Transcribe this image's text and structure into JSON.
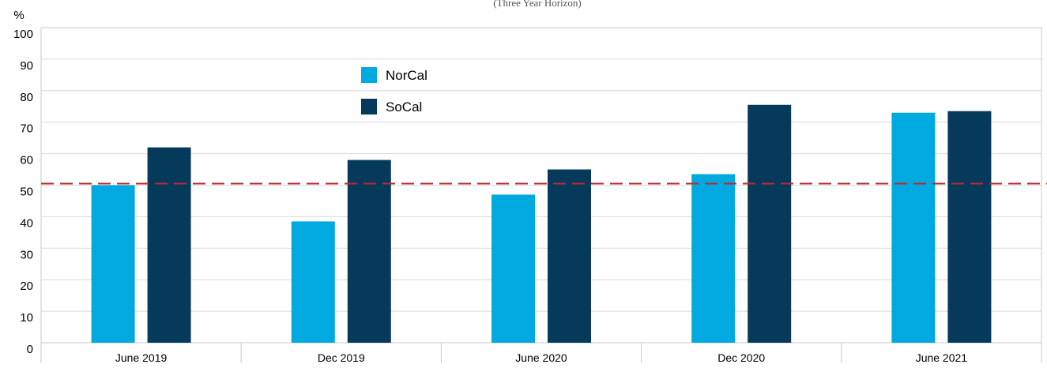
{
  "chart_data": {
    "type": "bar",
    "subtitle": "(Three Year Horizon)",
    "y_label": "%",
    "categories": [
      "June 2019",
      "Dec 2019",
      "June 2020",
      "Dec 2020",
      "June 2021"
    ],
    "series": [
      {
        "name": "NorCal",
        "color": "#00a9e0",
        "values": [
          50,
          38.5,
          47,
          53.5,
          73
        ]
      },
      {
        "name": "SoCal",
        "color": "#063a5b",
        "values": [
          62,
          58,
          55,
          75.5,
          73.5
        ]
      }
    ],
    "reference_line": {
      "value": 50.5,
      "color": "#c0272d"
    },
    "ylim": [
      0,
      100
    ],
    "yticks": [
      0,
      10,
      20,
      30,
      40,
      50,
      60,
      70,
      80,
      90,
      100
    ],
    "grid": true,
    "legend": "top-left"
  }
}
